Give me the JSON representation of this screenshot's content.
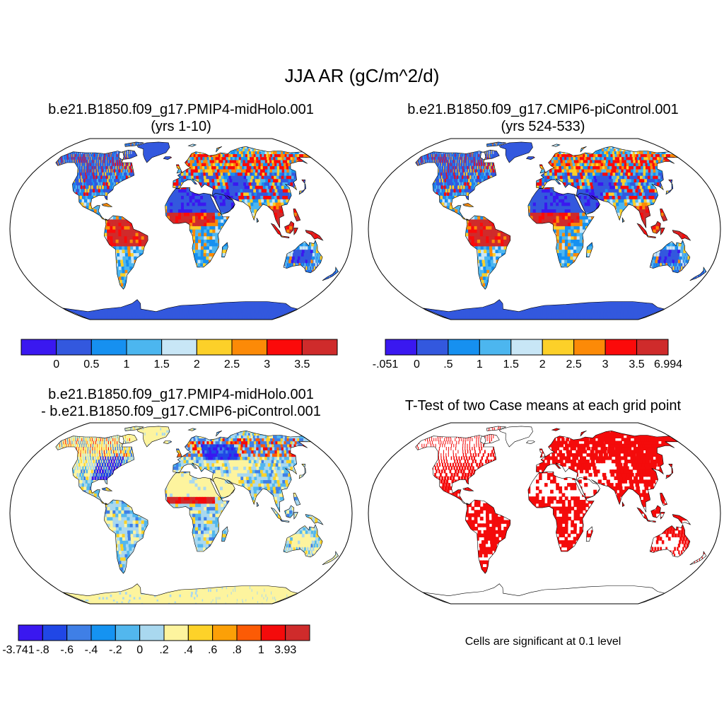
{
  "title": "JJA AR (gC/m^2/d)",
  "panels": [
    {
      "title_line1": "b.e21.B1850.f09_g17.PMIP4-midHolo.001",
      "title_line2": "(yrs 1-10)",
      "kind": "field"
    },
    {
      "title_line1": "b.e21.B1850.f09_g17.CMIP6-piControl.001",
      "title_line2": "(yrs 524-533)",
      "kind": "field"
    },
    {
      "title_line1": "b.e21.B1850.f09_g17.PMIP4-midHolo.001",
      "title_line2": "- b.e21.B1850.f09_g17.CMIP6-piControl.001",
      "kind": "difference"
    },
    {
      "title_line1": "T-Test of two Case means at each grid point",
      "title_line2": "",
      "kind": "significance"
    }
  ],
  "significance_note": "Cells are significant at 0.1 level",
  "colorbars": {
    "panel1": {
      "colors": [
        "#3a18f0",
        "#3358de",
        "#1690f0",
        "#4cb6ef",
        "#c8e6f6",
        "#fcd029",
        "#fc8a07",
        "#fb0a0a",
        "#cf2b2b"
      ],
      "labels": [
        "0",
        "0.5",
        "1",
        "1.5",
        "2",
        "2.5",
        "3",
        "3.5"
      ]
    },
    "panel2": {
      "colors": [
        "#3a18f0",
        "#3358de",
        "#1690f0",
        "#4cb6ef",
        "#c8e6f6",
        "#fcd029",
        "#fc8a07",
        "#fb0a0a",
        "#cf2b2b"
      ],
      "labels": [
        "-.051",
        "0",
        ".5",
        "1",
        "1.5",
        "2",
        "2.5",
        "3",
        "3.5",
        "6.994"
      ]
    },
    "panel3": {
      "colors": [
        "#3a18f0",
        "#2047e6",
        "#3f7fe6",
        "#1593f1",
        "#52b7ee",
        "#a9d8ef",
        "#fdf49e",
        "#fdd229",
        "#fca007",
        "#fc5b05",
        "#f40b0b",
        "#cf2b2b"
      ],
      "labels": [
        "-3.741",
        "-.8",
        "-.6",
        "-.4",
        "-.2",
        "0",
        ".2",
        ".4",
        ".6",
        ".8",
        "1",
        "3.93"
      ]
    }
  },
  "map_colors": {
    "ocean": "#ffffff",
    "coast": "#000000",
    "base_panel1": "#3358de",
    "base_panel2": "#3358de",
    "base_panel3": "#fdf49e",
    "base_panel4": "#ffffff",
    "significant": "#f40b0b"
  }
}
